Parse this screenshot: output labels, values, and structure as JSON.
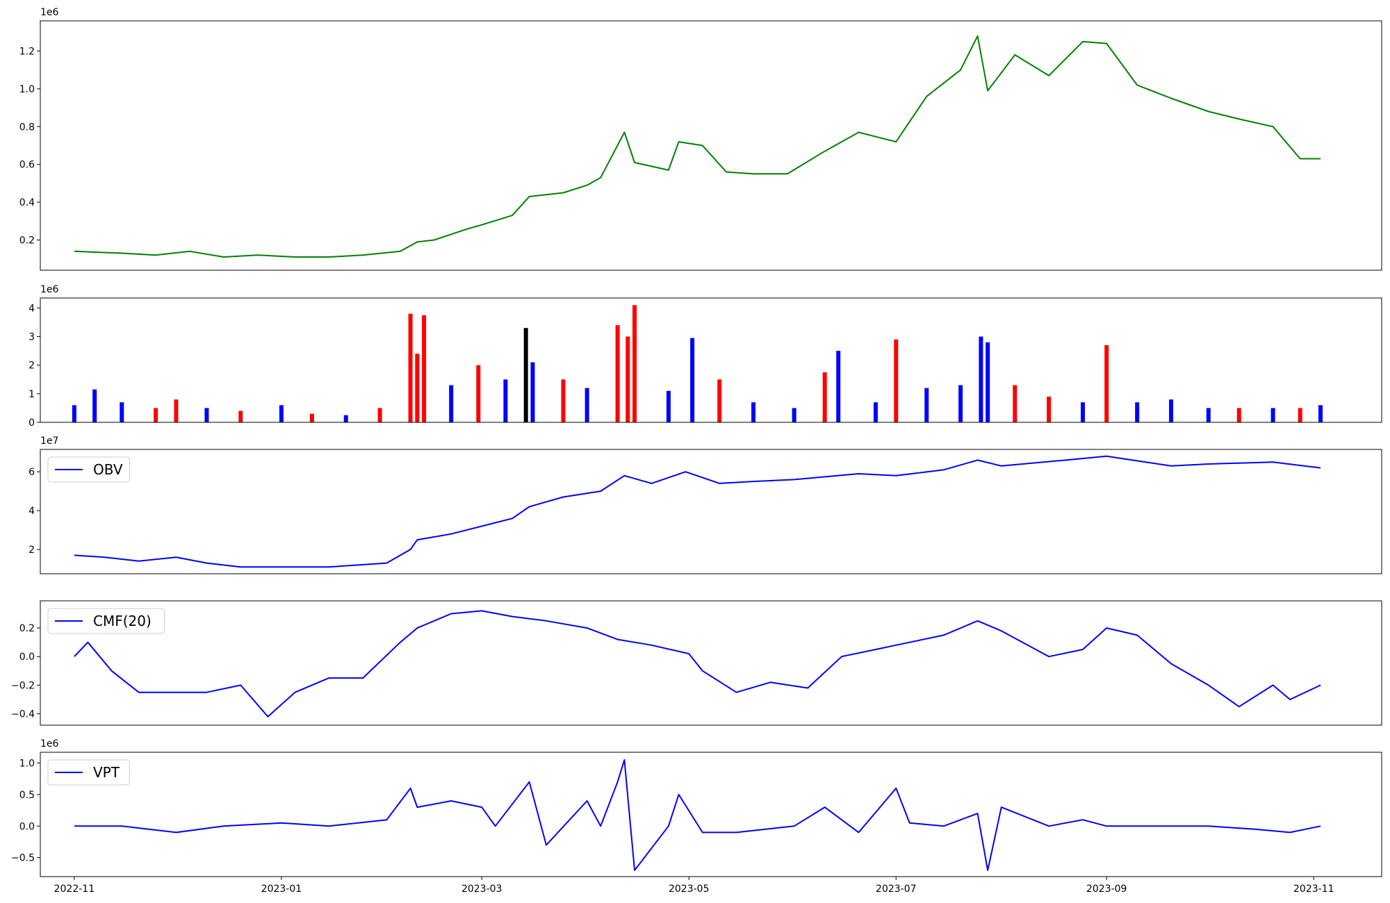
{
  "chart_data": [
    {
      "type": "line",
      "title": "",
      "xlabel": "",
      "ylabel": "",
      "offset_label": "1e6",
      "x_range": [
        "2022-10-22",
        "2023-11-21"
      ],
      "ylim": [
        0.04,
        1.36
      ],
      "yticks": [
        "0.2",
        "0.4",
        "0.6",
        "0.8",
        "1.0",
        "1.2"
      ],
      "ytick_values": [
        0.2,
        0.4,
        0.6,
        0.8,
        1.0,
        1.2
      ],
      "color": "#008000",
      "legend": null,
      "series": [
        {
          "x": [
            "2022-11-01",
            "2022-11-15",
            "2022-11-25",
            "2022-12-05",
            "2022-12-15",
            "2022-12-25",
            "2023-01-05",
            "2023-01-15",
            "2023-01-25",
            "2023-02-05",
            "2023-02-10",
            "2023-02-15",
            "2023-02-20",
            "2023-02-25",
            "2023-03-01",
            "2023-03-10",
            "2023-03-15",
            "2023-03-25",
            "2023-04-01",
            "2023-04-05",
            "2023-04-12",
            "2023-04-15",
            "2023-04-25",
            "2023-04-28",
            "2023-05-05",
            "2023-05-12",
            "2023-05-20",
            "2023-05-30",
            "2023-06-10",
            "2023-06-20",
            "2023-07-01",
            "2023-07-10",
            "2023-07-20",
            "2023-07-25",
            "2023-07-28",
            "2023-08-05",
            "2023-08-15",
            "2023-08-25",
            "2023-09-01",
            "2023-09-10",
            "2023-09-20",
            "2023-10-01",
            "2023-10-10",
            "2023-10-20",
            "2023-10-28",
            "2023-11-03"
          ],
          "y": [
            0.14,
            0.13,
            0.12,
            0.14,
            0.11,
            0.12,
            0.11,
            0.11,
            0.12,
            0.14,
            0.19,
            0.2,
            0.23,
            0.26,
            0.28,
            0.33,
            0.43,
            0.45,
            0.49,
            0.53,
            0.77,
            0.61,
            0.57,
            0.72,
            0.7,
            0.56,
            0.55,
            0.55,
            0.67,
            0.77,
            0.72,
            0.96,
            1.1,
            1.28,
            0.99,
            1.18,
            1.07,
            1.25,
            1.24,
            1.02,
            0.95,
            0.88,
            0.84,
            0.8,
            0.63,
            0.63
          ]
        }
      ]
    },
    {
      "type": "bar",
      "title": "",
      "xlabel": "",
      "ylabel": "",
      "offset_label": "1e6",
      "x_range": [
        "2022-10-22",
        "2023-11-21"
      ],
      "ylim": [
        0,
        4.35
      ],
      "yticks": [
        "0",
        "1",
        "2",
        "3",
        "4"
      ],
      "ytick_values": [
        0,
        1,
        2,
        3,
        4
      ],
      "colors": {
        "up": "#0000ff",
        "down": "#ff0000",
        "flat": "#000000"
      },
      "legend": null,
      "series": [
        {
          "x": [
            "2022-11-01",
            "2022-11-07",
            "2022-11-15",
            "2022-11-25",
            "2022-12-01",
            "2022-12-10",
            "2022-12-20",
            "2023-01-01",
            "2023-01-10",
            "2023-01-20",
            "2023-01-30",
            "2023-02-08",
            "2023-02-10",
            "2023-02-12",
            "2023-02-20",
            "2023-02-28",
            "2023-03-08",
            "2023-03-14",
            "2023-03-16",
            "2023-03-25",
            "2023-04-01",
            "2023-04-10",
            "2023-04-13",
            "2023-04-15",
            "2023-04-25",
            "2023-05-02",
            "2023-05-10",
            "2023-05-20",
            "2023-06-01",
            "2023-06-10",
            "2023-06-14",
            "2023-06-25",
            "2023-07-01",
            "2023-07-10",
            "2023-07-20",
            "2023-07-26",
            "2023-07-28",
            "2023-08-05",
            "2023-08-15",
            "2023-08-25",
            "2023-09-01",
            "2023-09-10",
            "2023-09-20",
            "2023-10-01",
            "2023-10-10",
            "2023-10-20",
            "2023-10-28",
            "2023-11-03"
          ],
          "y": [
            0.6,
            1.15,
            0.7,
            0.5,
            0.8,
            0.5,
            0.4,
            0.6,
            0.3,
            0.25,
            0.5,
            3.8,
            2.4,
            3.75,
            1.3,
            2.0,
            1.5,
            3.3,
            2.1,
            1.5,
            1.2,
            3.4,
            3.0,
            4.1,
            1.1,
            2.95,
            1.5,
            0.7,
            0.5,
            1.75,
            2.5,
            0.7,
            2.9,
            1.2,
            1.3,
            3.0,
            2.8,
            1.3,
            0.9,
            0.7,
            2.7,
            0.7,
            0.8,
            0.5,
            0.5,
            0.5,
            0.5,
            0.6
          ],
          "direction": [
            "up",
            "up",
            "up",
            "down",
            "down",
            "up",
            "down",
            "up",
            "down",
            "up",
            "down",
            "down",
            "down",
            "down",
            "up",
            "down",
            "up",
            "flat",
            "up",
            "down",
            "up",
            "down",
            "down",
            "down",
            "up",
            "up",
            "down",
            "up",
            "up",
            "down",
            "up",
            "up",
            "down",
            "up",
            "up",
            "up",
            "up",
            "down",
            "down",
            "up",
            "down",
            "up",
            "up",
            "up",
            "down",
            "up",
            "down",
            "up"
          ]
        }
      ]
    },
    {
      "type": "line",
      "title": "",
      "xlabel": "",
      "ylabel": "",
      "offset_label": "1e7",
      "x_range": [
        "2022-10-22",
        "2023-11-21"
      ],
      "ylim": [
        0.75,
        7.15
      ],
      "yticks": [
        "2",
        "4",
        "6"
      ],
      "ytick_values": [
        2,
        4,
        6
      ],
      "color": "#0000ff",
      "legend": "upper left",
      "series": [
        {
          "name": "OBV",
          "x": [
            "2022-11-01",
            "2022-11-10",
            "2022-11-20",
            "2022-12-01",
            "2022-12-10",
            "2022-12-20",
            "2023-01-01",
            "2023-01-15",
            "2023-02-01",
            "2023-02-08",
            "2023-02-10",
            "2023-02-20",
            "2023-03-01",
            "2023-03-10",
            "2023-03-15",
            "2023-03-25",
            "2023-04-05",
            "2023-04-12",
            "2023-04-20",
            "2023-04-30",
            "2023-05-10",
            "2023-05-20",
            "2023-06-01",
            "2023-06-20",
            "2023-07-01",
            "2023-07-15",
            "2023-07-25",
            "2023-08-01",
            "2023-08-20",
            "2023-09-01",
            "2023-09-20",
            "2023-10-01",
            "2023-10-20",
            "2023-11-03"
          ],
          "y": [
            1.7,
            1.6,
            1.4,
            1.6,
            1.3,
            1.1,
            1.1,
            1.1,
            1.3,
            2.0,
            2.5,
            2.8,
            3.2,
            3.6,
            4.2,
            4.7,
            5.0,
            5.8,
            5.4,
            6.0,
            5.4,
            5.5,
            5.6,
            5.9,
            5.8,
            6.1,
            6.6,
            6.3,
            6.6,
            6.8,
            6.3,
            6.4,
            6.5,
            6.2
          ]
        }
      ]
    },
    {
      "type": "line",
      "title": "",
      "xlabel": "",
      "ylabel": "",
      "offset_label": "",
      "x_range": [
        "2022-10-22",
        "2023-11-21"
      ],
      "ylim": [
        -0.48,
        0.39
      ],
      "yticks": [
        "−0.4",
        "−0.2",
        "0.0",
        "0.2"
      ],
      "ytick_values": [
        -0.4,
        -0.2,
        0.0,
        0.2
      ],
      "color": "#0000ff",
      "legend": "upper left",
      "series": [
        {
          "name": "CMF(20)",
          "x": [
            "2022-11-01",
            "2022-11-05",
            "2022-11-12",
            "2022-11-20",
            "2022-12-01",
            "2022-12-10",
            "2022-12-20",
            "2022-12-28",
            "2023-01-05",
            "2023-01-15",
            "2023-01-25",
            "2023-02-05",
            "2023-02-10",
            "2023-02-20",
            "2023-03-01",
            "2023-03-10",
            "2023-03-20",
            "2023-04-01",
            "2023-04-10",
            "2023-04-20",
            "2023-05-01",
            "2023-05-05",
            "2023-05-15",
            "2023-05-25",
            "2023-06-05",
            "2023-06-15",
            "2023-06-25",
            "2023-07-05",
            "2023-07-15",
            "2023-07-25",
            "2023-08-01",
            "2023-08-15",
            "2023-08-25",
            "2023-09-01",
            "2023-09-10",
            "2023-09-20",
            "2023-10-01",
            "2023-10-10",
            "2023-10-20",
            "2023-10-25",
            "2023-11-03"
          ],
          "y": [
            0.0,
            0.1,
            -0.1,
            -0.25,
            -0.25,
            -0.25,
            -0.2,
            -0.42,
            -0.25,
            -0.15,
            -0.15,
            0.1,
            0.2,
            0.3,
            0.32,
            0.28,
            0.25,
            0.2,
            0.12,
            0.08,
            0.02,
            -0.1,
            -0.25,
            -0.18,
            -0.22,
            0.0,
            0.05,
            0.1,
            0.15,
            0.25,
            0.18,
            0.0,
            0.05,
            0.2,
            0.15,
            -0.05,
            -0.2,
            -0.35,
            -0.2,
            -0.3,
            -0.2
          ]
        }
      ]
    },
    {
      "type": "line",
      "title": "",
      "xlabel": "",
      "ylabel": "",
      "offset_label": "1e6",
      "x_range": [
        "2022-10-22",
        "2023-11-21"
      ],
      "ylim": [
        -0.8,
        1.17
      ],
      "yticks": [
        "−0.5",
        "0.0",
        "0.5",
        "1.0"
      ],
      "ytick_values": [
        -0.5,
        0.0,
        0.5,
        1.0
      ],
      "xticks": [
        "2022-11",
        "2023-01",
        "2023-03",
        "2023-05",
        "2023-07",
        "2023-09",
        "2023-11"
      ],
      "xtick_values": [
        "2022-11-01",
        "2023-01-01",
        "2023-03-01",
        "2023-05-01",
        "2023-07-01",
        "2023-09-01",
        "2023-11-01"
      ],
      "color": "#0000ff",
      "legend": "upper left",
      "series": [
        {
          "name": "VPT",
          "x": [
            "2022-11-01",
            "2022-11-15",
            "2022-12-01",
            "2022-12-15",
            "2023-01-01",
            "2023-01-15",
            "2023-02-01",
            "2023-02-08",
            "2023-02-10",
            "2023-02-20",
            "2023-03-01",
            "2023-03-05",
            "2023-03-15",
            "2023-03-20",
            "2023-04-01",
            "2023-04-05",
            "2023-04-10",
            "2023-04-12",
            "2023-04-15",
            "2023-04-25",
            "2023-04-28",
            "2023-05-05",
            "2023-05-15",
            "2023-06-01",
            "2023-06-10",
            "2023-06-20",
            "2023-07-01",
            "2023-07-05",
            "2023-07-15",
            "2023-07-25",
            "2023-07-28",
            "2023-08-01",
            "2023-08-15",
            "2023-08-25",
            "2023-09-01",
            "2023-09-15",
            "2023-10-01",
            "2023-10-15",
            "2023-10-25",
            "2023-11-03"
          ],
          "y": [
            0.0,
            0.0,
            -0.1,
            0.0,
            0.05,
            0.0,
            0.1,
            0.6,
            0.3,
            0.4,
            0.3,
            0.0,
            0.7,
            -0.3,
            0.4,
            0.0,
            0.7,
            1.05,
            -0.7,
            0.0,
            0.5,
            -0.1,
            -0.1,
            0.0,
            0.3,
            -0.1,
            0.6,
            0.05,
            0.0,
            0.2,
            -0.7,
            0.3,
            0.0,
            0.1,
            0.0,
            0.0,
            0.0,
            -0.05,
            -0.1,
            0.0
          ]
        }
      ]
    }
  ]
}
